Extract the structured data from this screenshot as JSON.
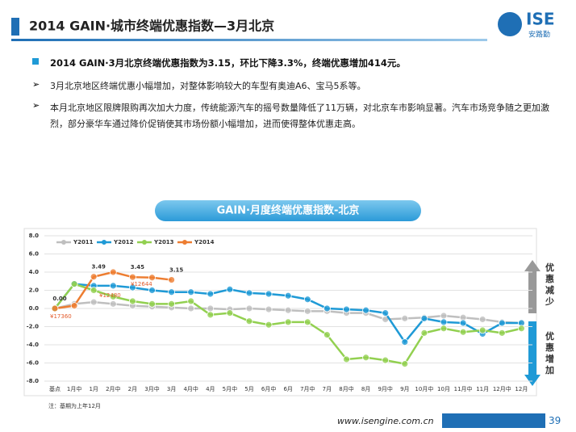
{
  "header": {
    "title": "2014 GAIN·城市终端优惠指数—3月北京",
    "logo": "ISE",
    "logo_sub": "安路勤"
  },
  "summary": {
    "headline": "2014 GAIN·3月北京终端优惠指数为3.15，环比下降3.3%，终端优惠增加414元。",
    "points": [
      "3月北京地区终端优惠小幅增加，对整体影响较大的车型有奥迪A6、宝马5系等。",
      "本月北京地区限牌限购再次加大力度，传统能源汽车的摇号数量降低了11万辆，对北京车市影响显著。汽车市场竞争随之更加激烈，部分豪华车通过降价促销使其市场份额小幅增加，进而使得整体优惠走高。"
    ]
  },
  "chart_data": {
    "type": "line",
    "title": "GAIN·月度终端优惠指数-北京",
    "categories": [
      "基点",
      "1月中",
      "1月",
      "2月中",
      "2月",
      "3月中",
      "3月",
      "4月中",
      "4月",
      "5月中",
      "5月",
      "6月中",
      "6月",
      "7月中",
      "7月",
      "8月中",
      "8月",
      "9月中",
      "9月",
      "10月中",
      "10月",
      "11月中",
      "11月",
      "12月中",
      "12月"
    ],
    "series": [
      {
        "name": "Y2011",
        "color": "#bfbfbf",
        "values": [
          0,
          0.5,
          0.7,
          0.5,
          0.3,
          0.2,
          0.1,
          0,
          0,
          -0.1,
          0,
          -0.1,
          -0.2,
          -0.3,
          -0.3,
          -0.5,
          -0.5,
          -1.2,
          -1.1,
          -1.0,
          -0.8,
          -1.0,
          -1.2,
          -1.5,
          -1.6
        ]
      },
      {
        "name": "Y2012",
        "color": "#1f9ad6",
        "values": [
          0,
          2.7,
          2.5,
          2.5,
          2.3,
          2.0,
          1.8,
          1.8,
          1.6,
          2.1,
          1.7,
          1.6,
          1.4,
          1.0,
          0,
          -0.1,
          -0.2,
          -0.5,
          -3.7,
          -1.1,
          -1.5,
          -1.6,
          -2.8,
          -1.6,
          -1.6
        ]
      },
      {
        "name": "Y2013",
        "color": "#92d050",
        "values": [
          0,
          2.7,
          2.0,
          1.3,
          0.8,
          0.5,
          0.5,
          0.8,
          -0.7,
          -0.5,
          -1.4,
          -1.8,
          -1.5,
          -1.5,
          -2.9,
          -5.6,
          -5.4,
          -5.7,
          -6.1,
          -2.7,
          -2.2,
          -2.6,
          -2.4,
          -2.7,
          -2.2
        ]
      },
      {
        "name": "Y2014",
        "color": "#ed7d31",
        "values": [
          0,
          0.3,
          3.49,
          4.0,
          3.45,
          3.4,
          3.15,
          null,
          null,
          null,
          null,
          null,
          null,
          null,
          null,
          null,
          null,
          null,
          null,
          null,
          null,
          null,
          null,
          null,
          null
        ],
        "value_labels": [
          "0.00",
          null,
          "3.49",
          null,
          "3.45",
          null,
          "3.15",
          null,
          null,
          null,
          null,
          null,
          null,
          null,
          null,
          null,
          null,
          null,
          null,
          null,
          null,
          null,
          null,
          null,
          null
        ]
      }
    ],
    "annotations": [
      "¥17360",
      "¥12480",
      "¥12644"
    ],
    "ylim": [
      -8,
      8
    ],
    "yticks": [
      {
        "value": 8,
        "label": "8.0"
      },
      {
        "value": 6,
        "label": "6.0"
      },
      {
        "value": 4,
        "label": "4.0"
      },
      {
        "value": 2,
        "label": "2.0"
      },
      {
        "value": 0,
        "label": "0.0"
      },
      {
        "value": -2,
        "label": "-2.0"
      },
      {
        "value": -4,
        "label": "-4.0"
      },
      {
        "value": -6,
        "label": "-6.0"
      },
      {
        "value": -8,
        "label": "-8.0"
      }
    ],
    "grid": true,
    "legend": "top",
    "side_labels": [
      "优惠减少",
      "优惠增加"
    ],
    "note": "注：基期为上年12月"
  },
  "footer": {
    "url": "www.isengine.com.cn",
    "page": "39"
  }
}
